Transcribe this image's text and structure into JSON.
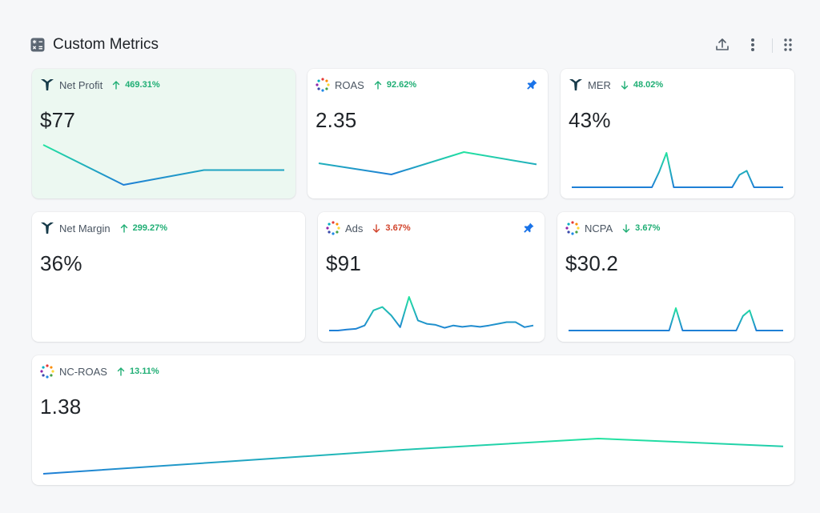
{
  "header": {
    "title": "Custom Metrics",
    "title_icon": "calculator-icon",
    "actions": [
      "upload-icon",
      "more-vertical-icon",
      "drag-handle-icon"
    ]
  },
  "colors": {
    "line_start": "#1f7fd6",
    "line_end": "#22e3a0",
    "up": "#1fae74",
    "down_bad": "#d1432b",
    "pin": "#1a73e8",
    "highlight_bg": "#ecf8f1"
  },
  "cards": [
    {
      "name": "Net Profit",
      "delta": "469.31%",
      "direction": "up",
      "value": "$77",
      "source_icon": "triple-whale-icon",
      "pinned": false,
      "highlight": true
    },
    {
      "name": "ROAS",
      "delta": "92.62%",
      "direction": "up",
      "value": "2.35",
      "source_icon": "dotted-ring-icon",
      "pinned": true,
      "highlight": false
    },
    {
      "name": "MER",
      "delta": "48.02%",
      "direction": "down-good",
      "value": "43%",
      "source_icon": "triple-whale-icon",
      "pinned": false,
      "highlight": false
    },
    {
      "name": "Net Margin",
      "delta": "299.27%",
      "direction": "up",
      "value": "36%",
      "source_icon": "triple-whale-icon",
      "pinned": false,
      "highlight": false
    },
    {
      "name": "Ads",
      "delta": "3.67%",
      "direction": "down-bad",
      "value": "$91",
      "source_icon": "dotted-ring-icon",
      "pinned": true,
      "highlight": false
    },
    {
      "name": "NCPA",
      "delta": "3.67%",
      "direction": "down-good",
      "value": "$30.2",
      "source_icon": "dotted-ring-icon",
      "pinned": false,
      "highlight": false
    },
    {
      "name": "NC-ROAS",
      "delta": "13.11%",
      "direction": "up",
      "value": "1.38",
      "source_icon": "dotted-ring-icon",
      "pinned": false,
      "highlight": false
    }
  ],
  "sparklines": [
    [
      1.0,
      0.0,
      0.37,
      0.37
    ],
    [
      0.5,
      0.0,
      1.0,
      0.45
    ],
    [
      0,
      0,
      0,
      0,
      0,
      0,
      0,
      0,
      0,
      0,
      0,
      0,
      0.45,
      1.0,
      0,
      0,
      0,
      0,
      0,
      0,
      0,
      0,
      0,
      0.36,
      0.48,
      0,
      0,
      0,
      0,
      0
    ],
    [],
    [
      0.0,
      0.0,
      0.03,
      0.05,
      0.15,
      0.6,
      0.7,
      0.45,
      0.1,
      1.0,
      0.3,
      0.2,
      0.17,
      0.08,
      0.15,
      0.11,
      0.14,
      0.11,
      0.15,
      0.2,
      0.25,
      0.25,
      0.1,
      0.15
    ],
    [
      0,
      0,
      0,
      0,
      0,
      0,
      0,
      0,
      0,
      0,
      0,
      0,
      0,
      0,
      0,
      0,
      1.0,
      0,
      0,
      0,
      0,
      0,
      0,
      0,
      0,
      0,
      0.65,
      0.9,
      0,
      0,
      0,
      0,
      0
    ],
    [
      0.0,
      0.35,
      0.7,
      1.0,
      0.78
    ]
  ]
}
